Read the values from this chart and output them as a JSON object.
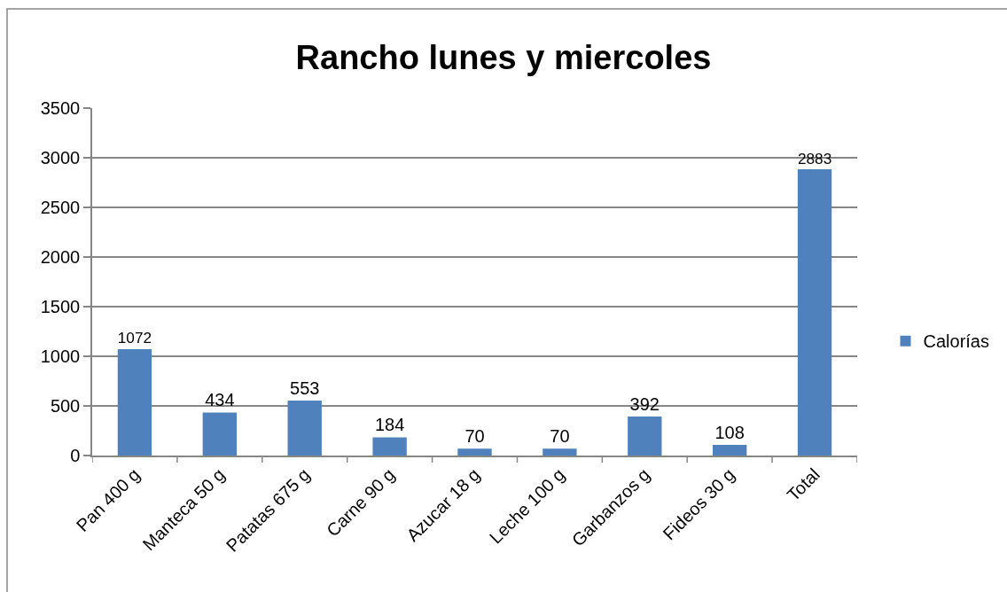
{
  "chart_data": {
    "type": "bar",
    "title": "Rancho lunes y miercoles",
    "categories": [
      "Pan 400 g",
      "Manteca 50 g",
      "Patatas 675 g",
      "Carne 90 g",
      "Azucar 18 g",
      "Leche 100 g",
      "Garbanzos g",
      "Fideos 30 g",
      "Total"
    ],
    "series": [
      {
        "name": "Calorías",
        "color": "#4f81bd",
        "values": [
          1072,
          434,
          553,
          184,
          70,
          70,
          392,
          108,
          2883
        ]
      }
    ],
    "ylim": [
      0,
      3500
    ],
    "yticks": [
      0,
      500,
      1000,
      1500,
      2000,
      2500,
      3000,
      3500
    ],
    "grid": "y",
    "legend": "right",
    "data_labels": true
  }
}
